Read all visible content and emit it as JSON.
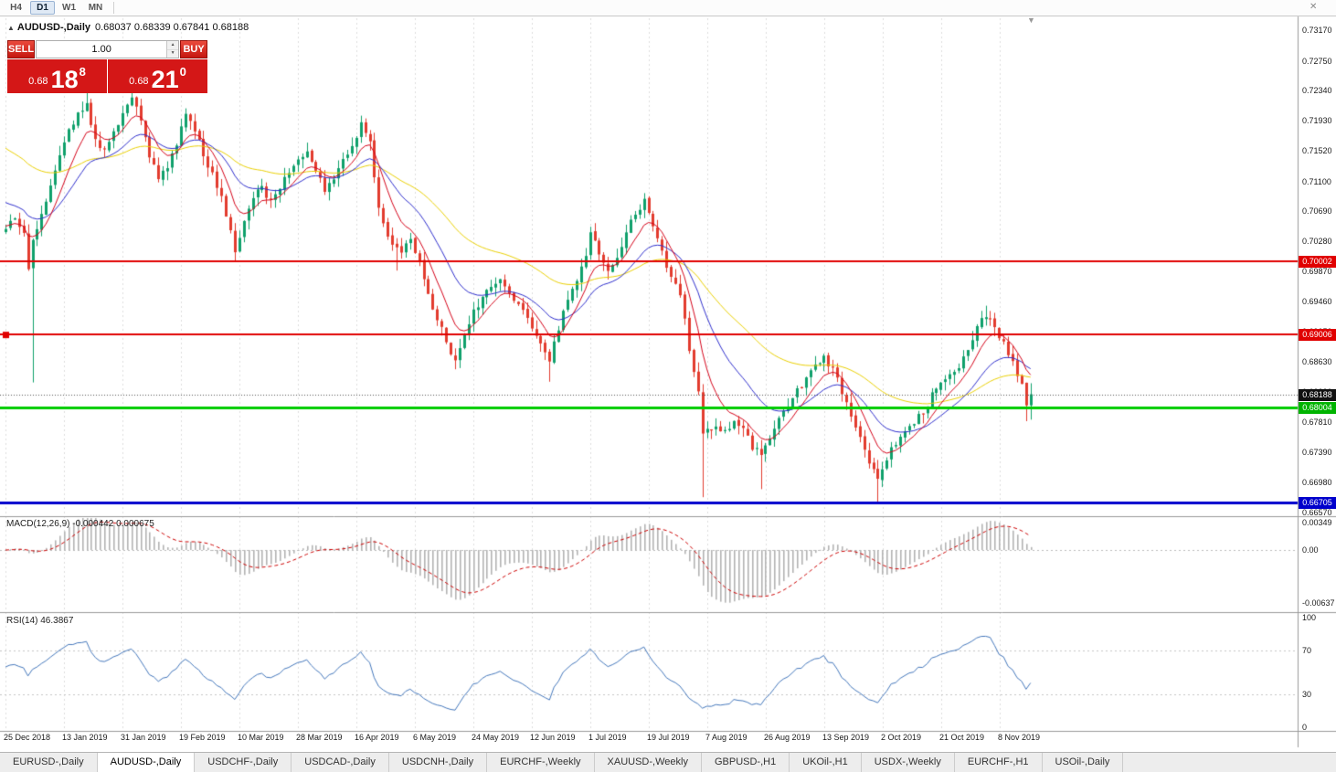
{
  "toolbar": {
    "periods": [
      "H4",
      "D1",
      "W1",
      "MN"
    ],
    "active": "D1"
  },
  "header": {
    "symbol": "AUDUSD-,Daily",
    "ohlc": "0.68037 0.68339 0.67841 0.68188"
  },
  "trade_panel": {
    "sell_label": "SELL",
    "buy_label": "BUY",
    "volume": "1.00",
    "sell_price": {
      "prefix": "0.68",
      "big": "18",
      "sup": "8"
    },
    "buy_price": {
      "prefix": "0.68",
      "big": "21",
      "sup": "0"
    }
  },
  "price_axis": {
    "labels": [
      "0.73170",
      "0.72750",
      "0.72340",
      "0.71930",
      "0.71520",
      "0.71100",
      "0.70690",
      "0.70280",
      "0.69870",
      "0.69460",
      "0.69050",
      "0.68630",
      "0.68220",
      "0.67810",
      "0.67390",
      "0.66980",
      "0.66570"
    ],
    "badges": [
      {
        "text": "0.70002",
        "price": 0.70002,
        "color": "#e00000"
      },
      {
        "text": "0.69006",
        "price": 0.69006,
        "color": "#e00000"
      },
      {
        "text": "0.68188",
        "price": 0.68188,
        "color": "#111111"
      },
      {
        "text": "0.68004",
        "price": 0.68004,
        "color": "#00b400"
      },
      {
        "text": "0.66705",
        "price": 0.66705,
        "color": "#0000cc"
      }
    ]
  },
  "indicators": {
    "macd": {
      "label": "MACD(12,26,9)",
      "values": "-0.000442 0.000675",
      "axis": [
        {
          "text": "0.00349",
          "value": 0.00349
        },
        {
          "text": "0.00",
          "value": 0
        },
        {
          "text": "-0.00637",
          "value": -0.00637
        }
      ]
    },
    "rsi": {
      "label": "RSI(14) 46.3867",
      "axis": [
        {
          "text": "100",
          "value": 100
        },
        {
          "text": "70",
          "value": 70
        },
        {
          "text": "30",
          "value": 30
        },
        {
          "text": "0",
          "value": 0
        }
      ]
    }
  },
  "date_axis": [
    "25 Dec 2018",
    "13 Jan 2019",
    "31 Jan 2019",
    "19 Feb 2019",
    "10 Mar 2019",
    "28 Mar 2019",
    "16 Apr 2019",
    "6 May 2019",
    "24 May 2019",
    "12 Jun 2019",
    "1 Jul 2019",
    "19 Jul 2019",
    "7 Aug 2019",
    "26 Aug 2019",
    "13 Sep 2019",
    "2 Oct 2019",
    "21 Oct 2019",
    "8 Nov 2019"
  ],
  "tabs": {
    "items": [
      "EURUSD-,Daily",
      "AUDUSD-,Daily",
      "USDCHF-,Daily",
      "USDCAD-,Daily",
      "USDCNH-,Daily",
      "EURCHF-,Weekly",
      "XAUUSD-,Weekly",
      "GBPUSD-,H1",
      "UKOil-,H1",
      "USDX-,Weekly",
      "EURCHF-,H1",
      "USOil-,Daily"
    ],
    "active": "AUDUSD-,Daily"
  },
  "chart_data": {
    "type": "candlestick",
    "symbol": "AUDUSD",
    "timeframe": "Daily",
    "visible_range": {
      "price_top": 0.7317,
      "price_bottom": 0.6657,
      "first_date": "25 Dec 2018",
      "last_date": "8 Nov 2019"
    },
    "current_price": 0.68188,
    "last_candle": {
      "open": 0.68037,
      "high": 0.68339,
      "low": 0.67841,
      "close": 0.68188
    },
    "hlines": [
      {
        "price": 0.70002,
        "color": "#e00000",
        "width": 2
      },
      {
        "price": 0.69006,
        "color": "#e00000",
        "width": 2
      },
      {
        "price": 0.68004,
        "color": "#00cc00",
        "width": 3
      },
      {
        "price": 0.66705,
        "color": "#0000cc",
        "width": 3
      }
    ],
    "anchors": [
      [
        0,
        0.7045
      ],
      [
        2,
        0.7058
      ],
      [
        4,
        0.704
      ],
      [
        5,
        0.6988
      ],
      [
        6,
        0.7025
      ],
      [
        8,
        0.7068
      ],
      [
        10,
        0.7105
      ],
      [
        12,
        0.7148
      ],
      [
        14,
        0.7178
      ],
      [
        16,
        0.72
      ],
      [
        18,
        0.7218
      ],
      [
        20,
        0.7165
      ],
      [
        22,
        0.7152
      ],
      [
        24,
        0.718
      ],
      [
        26,
        0.7205
      ],
      [
        28,
        0.7228
      ],
      [
        30,
        0.7198
      ],
      [
        32,
        0.7145
      ],
      [
        34,
        0.7112
      ],
      [
        36,
        0.7128
      ],
      [
        38,
        0.7162
      ],
      [
        40,
        0.7198
      ],
      [
        42,
        0.7182
      ],
      [
        44,
        0.7148
      ],
      [
        46,
        0.7118
      ],
      [
        48,
        0.7085
      ],
      [
        50,
        0.7042
      ],
      [
        51,
        0.7012
      ],
      [
        53,
        0.7058
      ],
      [
        55,
        0.7088
      ],
      [
        57,
        0.7102
      ],
      [
        59,
        0.7082
      ],
      [
        61,
        0.7102
      ],
      [
        63,
        0.7122
      ],
      [
        65,
        0.7138
      ],
      [
        67,
        0.7152
      ],
      [
        69,
        0.7128
      ],
      [
        71,
        0.7098
      ],
      [
        73,
        0.7112
      ],
      [
        75,
        0.7138
      ],
      [
        77,
        0.7162
      ],
      [
        79,
        0.7188
      ],
      [
        81,
        0.7165
      ],
      [
        82,
        0.7118
      ],
      [
        83,
        0.7078
      ],
      [
        84,
        0.7048
      ],
      [
        86,
        0.7022
      ],
      [
        88,
        0.7012
      ],
      [
        90,
        0.7032
      ],
      [
        92,
        0.7002
      ],
      [
        94,
        0.6952
      ],
      [
        96,
        0.6922
      ],
      [
        98,
        0.6892
      ],
      [
        100,
        0.6865
      ],
      [
        102,
        0.6898
      ],
      [
        104,
        0.6932
      ],
      [
        106,
        0.695
      ],
      [
        108,
        0.6968
      ],
      [
        110,
        0.6976
      ],
      [
        112,
        0.6958
      ],
      [
        114,
        0.6938
      ],
      [
        116,
        0.6922
      ],
      [
        118,
        0.6898
      ],
      [
        120,
        0.6878
      ],
      [
        121,
        0.6868
      ],
      [
        123,
        0.6908
      ],
      [
        125,
        0.6948
      ],
      [
        127,
        0.6978
      ],
      [
        129,
        0.7012
      ],
      [
        130,
        0.7036
      ],
      [
        132,
        0.7012
      ],
      [
        134,
        0.6986
      ],
      [
        136,
        0.7002
      ],
      [
        138,
        0.7042
      ],
      [
        140,
        0.7066
      ],
      [
        142,
        0.7082
      ],
      [
        144,
        0.7048
      ],
      [
        146,
        0.7012
      ],
      [
        148,
        0.6982
      ],
      [
        150,
        0.6952
      ],
      [
        151,
        0.6918
      ],
      [
        152,
        0.6882
      ],
      [
        153,
        0.6852
      ],
      [
        154,
        0.6822
      ],
      [
        155,
        0.6762
      ],
      [
        158,
        0.6778
      ],
      [
        160,
        0.6768
      ],
      [
        162,
        0.6782
      ],
      [
        164,
        0.6772
      ],
      [
        166,
        0.6748
      ],
      [
        168,
        0.6732
      ],
      [
        170,
        0.6762
      ],
      [
        172,
        0.6788
      ],
      [
        174,
        0.6802
      ],
      [
        176,
        0.6822
      ],
      [
        178,
        0.6842
      ],
      [
        180,
        0.6856
      ],
      [
        182,
        0.6872
      ],
      [
        184,
        0.6852
      ],
      [
        186,
        0.6822
      ],
      [
        188,
        0.6792
      ],
      [
        190,
        0.6762
      ],
      [
        192,
        0.6728
      ],
      [
        194,
        0.6702
      ],
      [
        196,
        0.6732
      ],
      [
        198,
        0.6752
      ],
      [
        200,
        0.6765
      ],
      [
        202,
        0.6778
      ],
      [
        204,
        0.6795
      ],
      [
        206,
        0.6818
      ],
      [
        208,
        0.6835
      ],
      [
        210,
        0.6848
      ],
      [
        212,
        0.6858
      ],
      [
        214,
        0.6882
      ],
      [
        216,
        0.6912
      ],
      [
        218,
        0.6928
      ],
      [
        220,
        0.6908
      ],
      [
        222,
        0.6892
      ],
      [
        224,
        0.6862
      ],
      [
        226,
        0.6832
      ],
      [
        227,
        0.6806
      ],
      [
        228,
        0.68188
      ]
    ],
    "wick_lows": {
      "6": 0.6835,
      "51": 0.7002,
      "87": 0.6988,
      "100": 0.6853,
      "121": 0.6836,
      "155": 0.6678,
      "168": 0.6689,
      "194": 0.6671,
      "227": 0.6782
    },
    "wick_highs": {
      "18": 0.7232,
      "28": 0.724,
      "40": 0.721,
      "79": 0.72,
      "130": 0.7048,
      "142": 0.7094,
      "218": 0.694
    },
    "moving_averages": [
      {
        "period": 8,
        "color": "#d40018",
        "seed": 0.705
      },
      {
        "period": 20,
        "color": "#2e2ecc",
        "seed": 0.7085
      },
      {
        "period": 50,
        "color": "#e9cf00",
        "seed": 0.716
      }
    ],
    "macd": {
      "fast": 12,
      "slow": 26,
      "signal": 9,
      "last_main": -0.000442,
      "last_signal": 0.000675
    },
    "rsi": {
      "period": 14,
      "last": 46.3867
    },
    "colors": {
      "up": "#0fa06b",
      "down": "#e23b2e",
      "histogram": "#b3b3b3",
      "macd_signal": "#cc0000",
      "rsi_line": "#4477bb"
    }
  }
}
